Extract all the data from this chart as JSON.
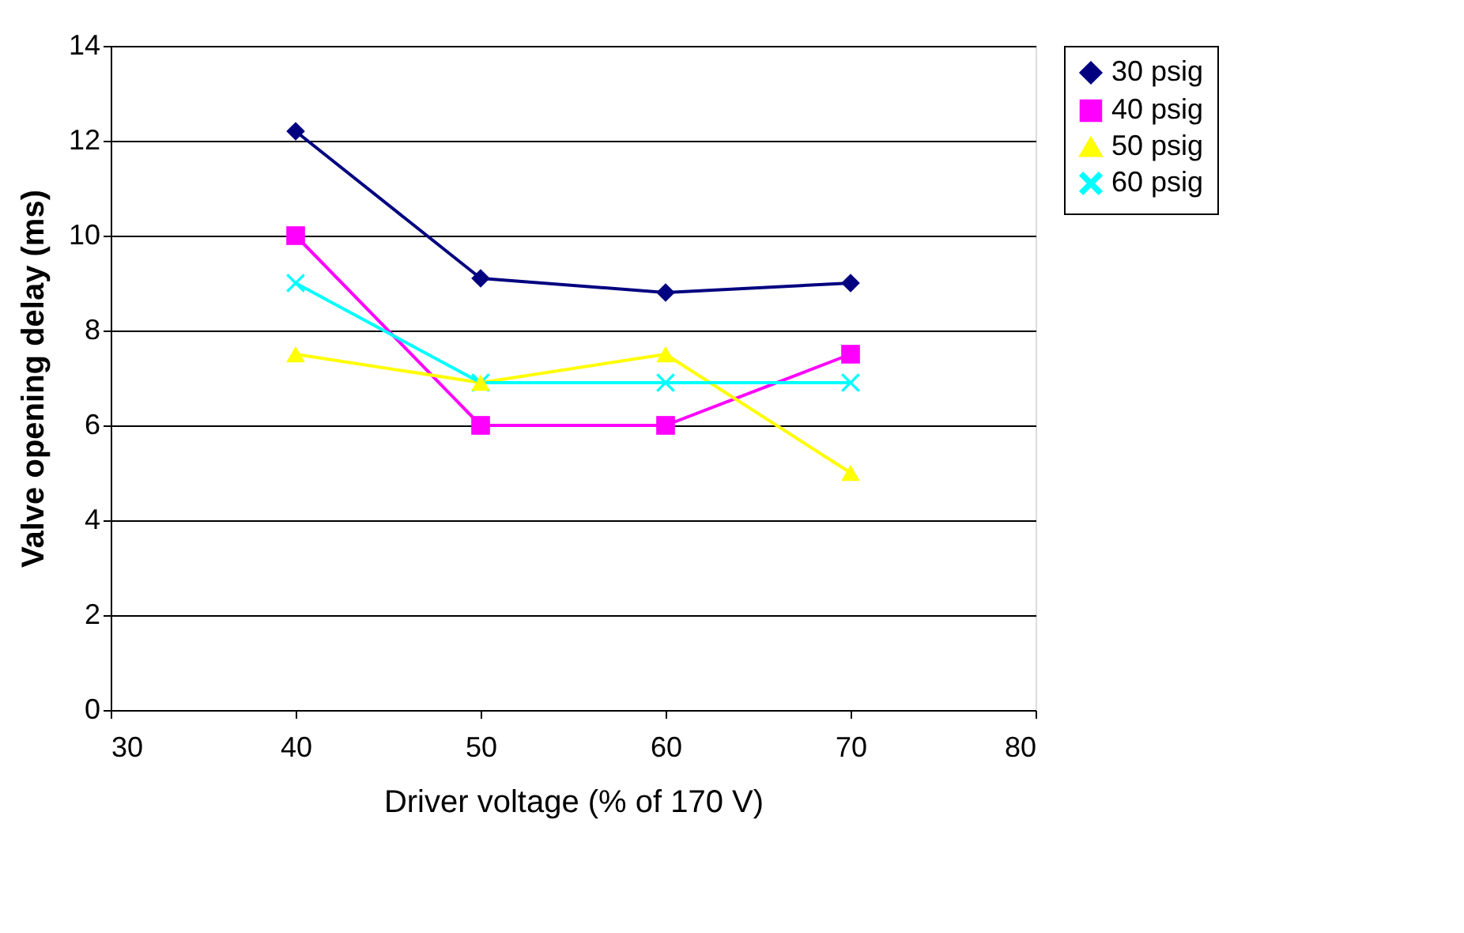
{
  "chart_data": {
    "type": "line",
    "xlabel": "Driver  voltage  (%  of  170  V)",
    "ylabel": "Valve opening delay (ms)",
    "x": [
      40,
      50,
      60,
      70
    ],
    "xlim": [
      30,
      80
    ],
    "xticks": [
      30,
      40,
      50,
      60,
      70,
      80
    ],
    "ylim": [
      0,
      14
    ],
    "yticks": [
      0,
      2,
      4,
      6,
      8,
      10,
      12,
      14
    ],
    "grid": "y",
    "legend": "right",
    "series": [
      {
        "name": "30 psig",
        "color": "#000080",
        "marker": "diamond",
        "values": [
          12.2,
          9.1,
          8.8,
          9.0
        ]
      },
      {
        "name": "40 psig",
        "color": "#ff00ff",
        "marker": "square",
        "values": [
          10.0,
          6.0,
          6.0,
          7.5
        ]
      },
      {
        "name": "50 psig",
        "color": "#ffff00",
        "marker": "triangle",
        "values": [
          7.5,
          6.9,
          7.5,
          5.0
        ]
      },
      {
        "name": "60 psig",
        "color": "#00ffff",
        "marker": "cross",
        "values": [
          9.0,
          6.9,
          6.9,
          6.9
        ]
      }
    ]
  }
}
